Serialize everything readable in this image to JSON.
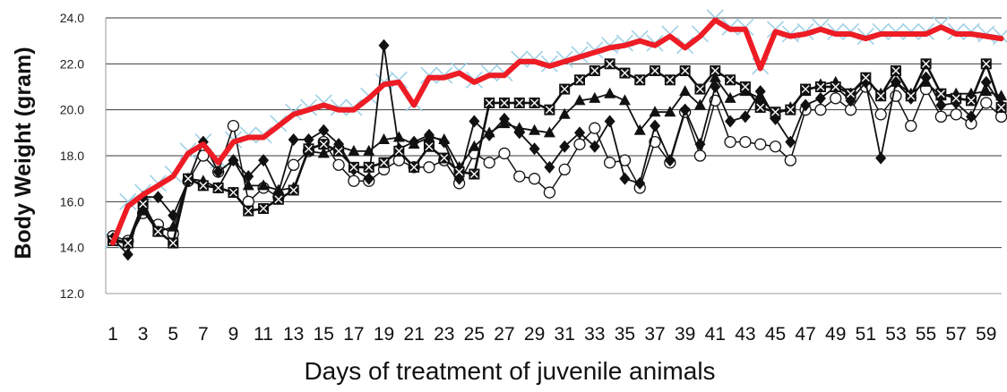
{
  "chart_data": {
    "type": "line",
    "xlabel": "Days of treatment of juvenile animals",
    "ylabel": "Body Weight (gram)",
    "ylim": [
      12.0,
      24.0
    ],
    "yticks": [
      "12.0",
      "14.0",
      "16.0",
      "18.0",
      "20.0",
      "22.0",
      "24.0"
    ],
    "xlim": [
      1,
      60
    ],
    "xtick_labels": [
      "1",
      "3",
      "5",
      "7",
      "9",
      "11",
      "13",
      "15",
      "17",
      "19",
      "21",
      "23",
      "25",
      "27",
      "29",
      "31",
      "33",
      "35",
      "37",
      "39",
      "41",
      "43",
      "45",
      "47",
      "49",
      "51",
      "53",
      "55",
      "57",
      "59"
    ],
    "grid": "horizontal",
    "legend": "none",
    "x": [
      1,
      2,
      3,
      4,
      5,
      6,
      7,
      8,
      9,
      10,
      11,
      12,
      13,
      14,
      15,
      16,
      17,
      18,
      19,
      20,
      21,
      22,
      23,
      24,
      25,
      26,
      27,
      28,
      29,
      30,
      31,
      32,
      33,
      34,
      35,
      36,
      37,
      38,
      39,
      40,
      41,
      42,
      43,
      44,
      45,
      46,
      47,
      48,
      49,
      50,
      51,
      52,
      53,
      54,
      55,
      56,
      57,
      58,
      59,
      60
    ],
    "series": [
      {
        "marker": "asterisk",
        "color": "#9fd0e6",
        "values": [
          14.3,
          16.0,
          16.4,
          16.8,
          17.2,
          18.2,
          18.6,
          17.8,
          18.7,
          18.9,
          18.9,
          19.4,
          19.9,
          20.1,
          20.3,
          20.1,
          20.1,
          20.6,
          21.2,
          21.3,
          20.3,
          21.5,
          21.5,
          21.7,
          21.3,
          21.6,
          21.6,
          22.2,
          22.2,
          22.0,
          22.2,
          22.4,
          22.6,
          22.8,
          22.9,
          23.1,
          22.9,
          23.3,
          22.8,
          23.3,
          24.0,
          23.6,
          23.6,
          21.9,
          23.5,
          23.3,
          23.4,
          23.6,
          23.4,
          23.4,
          23.2,
          23.4,
          23.4,
          23.4,
          23.4,
          23.7,
          23.4,
          23.4,
          23.3,
          23.2
        ]
      },
      {
        "marker": "none",
        "color": "#ee1c24",
        "values": [
          14.2,
          15.8,
          16.3,
          16.7,
          17.1,
          18.1,
          18.5,
          17.7,
          18.6,
          18.8,
          18.8,
          19.3,
          19.8,
          20.0,
          20.2,
          20.0,
          20.0,
          20.5,
          21.1,
          21.2,
          20.2,
          21.4,
          21.4,
          21.6,
          21.2,
          21.5,
          21.5,
          22.1,
          22.1,
          21.9,
          22.1,
          22.3,
          22.5,
          22.7,
          22.8,
          23.0,
          22.8,
          23.2,
          22.7,
          23.2,
          23.9,
          23.5,
          23.5,
          21.8,
          23.4,
          23.2,
          23.3,
          23.5,
          23.3,
          23.3,
          23.1,
          23.3,
          23.3,
          23.3,
          23.3,
          23.6,
          23.3,
          23.3,
          23.2,
          23.1
        ]
      },
      {
        "marker": "square-x",
        "color": "#111111",
        "values": [
          14.3,
          14.2,
          15.9,
          14.7,
          14.2,
          17.0,
          16.7,
          16.6,
          16.4,
          15.6,
          15.7,
          16.1,
          16.5,
          18.3,
          18.5,
          18.2,
          17.5,
          17.5,
          17.7,
          18.2,
          17.5,
          18.4,
          17.9,
          17.3,
          17.2,
          20.3,
          20.3,
          20.3,
          20.3,
          20.0,
          20.9,
          21.3,
          21.7,
          22.0,
          21.6,
          21.3,
          21.7,
          21.3,
          21.7,
          20.9,
          21.7,
          21.3,
          21.0,
          20.1,
          19.9,
          20.0,
          20.9,
          21.0,
          21.0,
          20.7,
          21.4,
          20.6,
          21.7,
          20.6,
          22.0,
          20.7,
          20.5,
          20.4,
          22.0,
          20.1
        ]
      },
      {
        "marker": "triangle",
        "color": "#111111",
        "values": [
          14.4,
          14.2,
          15.6,
          14.7,
          14.9,
          17.0,
          16.9,
          16.6,
          17.8,
          16.7,
          16.7,
          16.5,
          16.6,
          18.2,
          18.1,
          18.4,
          18.2,
          18.2,
          18.7,
          18.8,
          18.5,
          18.8,
          18.7,
          17.5,
          18.4,
          19.0,
          19.4,
          19.2,
          19.1,
          19.0,
          19.8,
          20.4,
          20.5,
          20.7,
          20.4,
          19.1,
          19.9,
          19.9,
          20.8,
          20.2,
          21.4,
          20.5,
          20.8,
          20.5,
          19.8,
          20.1,
          20.8,
          21.1,
          21.2,
          20.7,
          21.3,
          20.7,
          21.2,
          20.7,
          21.2,
          20.6,
          20.7,
          20.7,
          20.8,
          20.6
        ]
      },
      {
        "marker": "diamond",
        "color": "#111111",
        "values": [
          14.4,
          13.7,
          16.2,
          16.2,
          15.4,
          16.9,
          18.6,
          17.3,
          17.8,
          17.1,
          17.8,
          16.4,
          18.7,
          18.7,
          19.1,
          18.5,
          17.4,
          17.0,
          22.8,
          18.3,
          18.6,
          18.9,
          18.6,
          17.0,
          19.5,
          18.9,
          19.6,
          19.0,
          18.3,
          17.5,
          18.4,
          19.0,
          18.4,
          19.5,
          17.0,
          16.8,
          19.3,
          17.8,
          20.0,
          18.5,
          21.0,
          19.5,
          19.7,
          20.8,
          19.6,
          18.6,
          20.2,
          20.5,
          21.0,
          20.4,
          21.2,
          17.9,
          21.2,
          20.5,
          21.4,
          20.2,
          20.3,
          19.7,
          21.2,
          20.2
        ]
      },
      {
        "marker": "circle",
        "color": "#111111",
        "values": [
          14.5,
          14.3,
          15.5,
          15.0,
          14.6,
          16.9,
          18.0,
          17.3,
          19.3,
          16.0,
          16.6,
          16.2,
          17.6,
          18.2,
          18.6,
          17.6,
          16.9,
          16.9,
          17.4,
          17.8,
          17.5,
          17.5,
          17.8,
          16.8,
          18.1,
          17.7,
          18.1,
          17.1,
          17.0,
          16.4,
          17.4,
          18.5,
          19.2,
          17.7,
          17.8,
          16.6,
          18.6,
          17.7,
          19.9,
          18.0,
          20.4,
          18.6,
          18.6,
          18.5,
          18.4,
          17.8,
          20.0,
          20.0,
          20.5,
          20.0,
          21.0,
          19.8,
          20.6,
          19.3,
          20.9,
          19.7,
          19.8,
          19.4,
          20.3,
          19.7
        ]
      }
    ]
  }
}
